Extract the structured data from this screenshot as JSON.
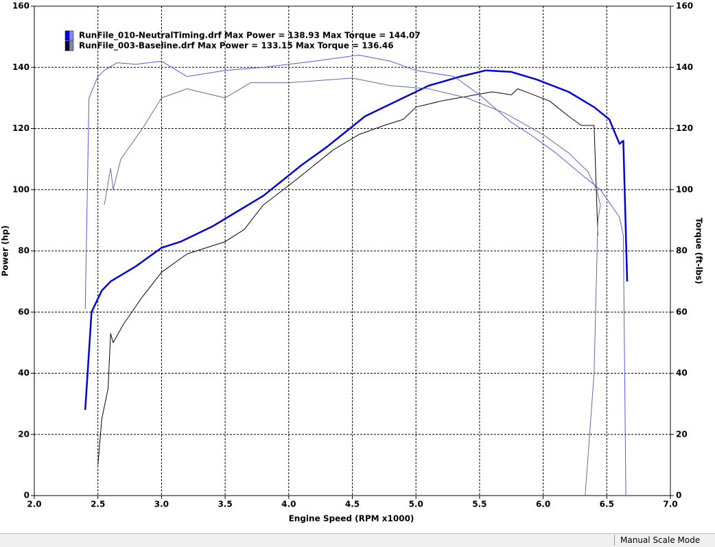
{
  "chart_data": {
    "type": "line",
    "xlabel": "Engine Speed (RPM x1000)",
    "ylabel": "Power (hp)",
    "y2label": "Torque (ft-lbs)",
    "xlim": [
      2,
      7
    ],
    "ylim": [
      0,
      160
    ],
    "y2lim": [
      0,
      160
    ],
    "xticks": [
      {
        "value": 2,
        "label": "2.0"
      },
      2.5,
      {
        "value": 3,
        "label": "3.0"
      },
      3.5,
      {
        "value": 4,
        "label": "4.0"
      },
      4.5,
      {
        "value": 5,
        "label": "5.0"
      },
      5.5,
      {
        "value": 6,
        "label": "6.0"
      },
      6.5,
      {
        "value": 7,
        "label": "7.0"
      }
    ],
    "yticks": [
      0,
      20,
      40,
      60,
      80,
      100,
      120,
      140,
      160
    ],
    "y2ticks": [
      0,
      20,
      40,
      60,
      80,
      100,
      120,
      140,
      160
    ],
    "grid": true,
    "legend": [
      {
        "label": "RunFile_010-NeutralTiming.drf Max Power = 138.93 Max Torque = 144.07",
        "colors": [
          "#0000ee",
          "#8888ff"
        ]
      },
      {
        "label": "RunFile_003-Baseline.drf Max Power = 133.15 Max Torque = 136.46",
        "colors": [
          "#000033",
          "#8888aa"
        ]
      }
    ],
    "series": [
      {
        "color": "#0000dd",
        "width": 2.5,
        "axis": "y",
        "x": [
          2.4,
          2.45,
          2.53,
          2.6,
          2.8,
          3.0,
          3.15,
          3.4,
          3.6,
          3.8,
          3.95,
          4.1,
          4.3,
          4.45,
          4.6,
          4.8,
          4.95,
          5.1,
          5.35,
          5.55,
          5.75,
          5.95,
          6.2,
          6.4,
          6.52,
          6.6,
          6.63,
          6.66
        ],
        "values": [
          28,
          60,
          67,
          70,
          75,
          81,
          83,
          88,
          93,
          98,
          103,
          108,
          114,
          119,
          124,
          128,
          131,
          134,
          137,
          139,
          138.5,
          136,
          132,
          127,
          123,
          115,
          116,
          70
        ]
      },
      {
        "color": "#000000",
        "width": 1,
        "axis": "y",
        "x": [
          2.5,
          2.53,
          2.58,
          2.6,
          2.62,
          2.7,
          2.85,
          3.0,
          3.2,
          3.5,
          3.65,
          3.8,
          4.05,
          4.2,
          4.35,
          4.55,
          4.75,
          4.9,
          5.0,
          5.2,
          5.4,
          5.6,
          5.75,
          5.8,
          6.05,
          6.2,
          6.3,
          6.4,
          6.43
        ],
        "values": [
          10,
          25,
          35,
          53,
          50,
          56,
          65,
          73,
          79,
          83,
          87,
          95,
          103,
          108,
          113,
          118,
          121,
          123,
          127,
          129,
          130.5,
          132,
          131,
          133,
          129,
          124,
          121,
          121,
          85
        ]
      },
      {
        "color": "#5555ee",
        "width": 1,
        "axis": "y2",
        "x": [
          2.4,
          2.43,
          2.5,
          2.55,
          2.65,
          2.8,
          3.0,
          3.2,
          3.5,
          3.8,
          4.2,
          4.55,
          4.8,
          5.0,
          5.3,
          5.5,
          5.75,
          5.9,
          6.1,
          6.3,
          6.45,
          6.55,
          6.6,
          6.63,
          6.65
        ],
        "values": [
          61,
          130,
          137,
          139,
          141.5,
          141,
          142,
          137,
          139,
          140,
          142,
          144,
          142,
          139,
          137,
          131,
          122,
          118,
          112,
          105,
          100,
          94,
          91,
          85,
          0
        ]
      },
      {
        "color": "#6666aa",
        "width": 1,
        "axis": "y2",
        "x": [
          2.55,
          2.6,
          2.62,
          2.68,
          2.85,
          3.0,
          3.2,
          3.5,
          3.7,
          4.0,
          4.5,
          4.8,
          5.1,
          5.4,
          5.7,
          6.0,
          6.2,
          6.35,
          6.42,
          6.45,
          6.43,
          6.4,
          6.33
        ],
        "values": [
          95,
          107,
          100,
          110,
          120,
          130,
          133,
          130,
          135,
          135,
          136.5,
          134,
          133,
          130,
          125,
          118,
          112,
          106,
          100,
          95,
          90,
          40,
          0
        ]
      }
    ]
  },
  "status_bar": {
    "mode": "Manual Scale Mode"
  }
}
